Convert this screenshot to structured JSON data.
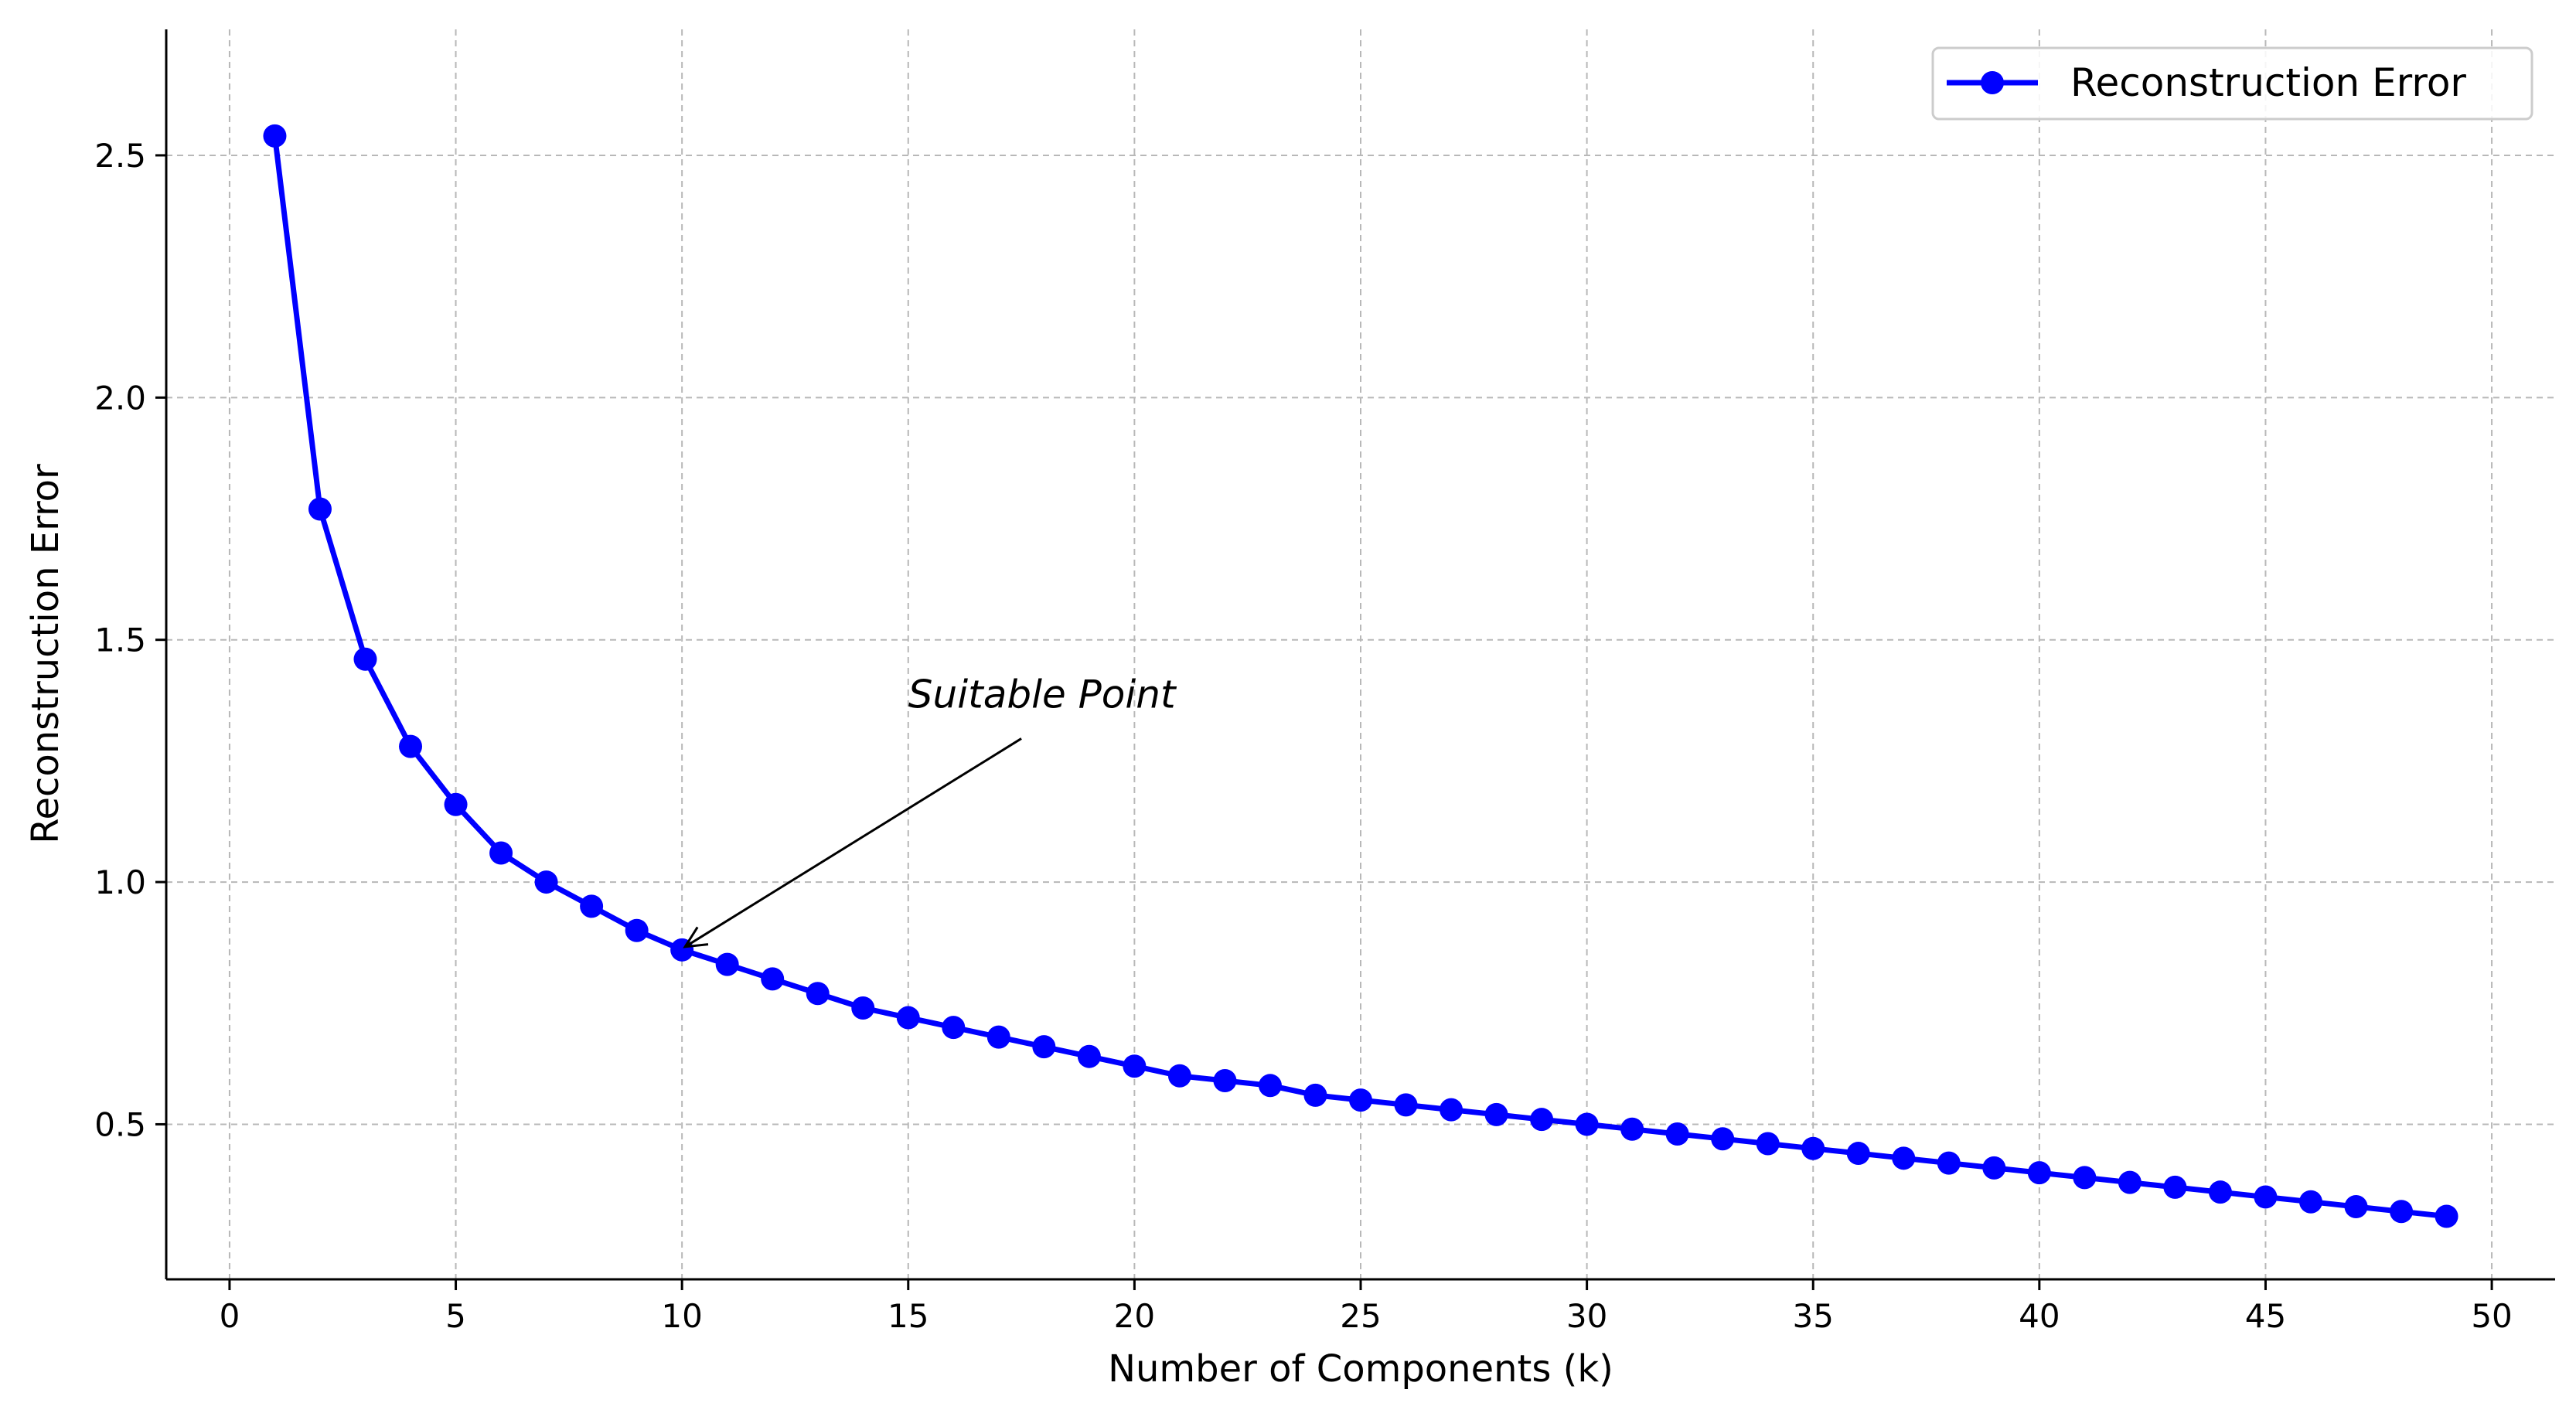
{
  "chart_data": {
    "type": "line",
    "title": "",
    "xlabel": "Number of Components (k)",
    "ylabel": "Reconstruction Error",
    "xlim": [
      -1.4,
      51.4
    ],
    "ylim": [
      0.18,
      2.76
    ],
    "xticks": [
      0,
      5,
      10,
      15,
      20,
      25,
      30,
      35,
      40,
      45,
      50
    ],
    "xtick_labels": [
      "0",
      "5",
      "10",
      "15",
      "20",
      "25",
      "30",
      "35",
      "40",
      "45",
      "50"
    ],
    "yticks": [
      0.5,
      1.0,
      1.5,
      2.0,
      2.5
    ],
    "ytick_labels": [
      "0.5",
      "1.0",
      "1.5",
      "2.0",
      "2.5"
    ],
    "grid": true,
    "legend_position": "top-right",
    "series": [
      {
        "name": "Reconstruction Error",
        "color": "#0000ff",
        "marker": "circle",
        "x": [
          1,
          2,
          3,
          4,
          5,
          6,
          7,
          8,
          9,
          10,
          11,
          12,
          13,
          14,
          15,
          16,
          17,
          18,
          19,
          20,
          21,
          22,
          23,
          24,
          25,
          26,
          27,
          28,
          29,
          30,
          31,
          32,
          33,
          34,
          35,
          36,
          37,
          38,
          39,
          40,
          41,
          42,
          43,
          44,
          45,
          46,
          47,
          48,
          49
        ],
        "values": [
          2.54,
          1.77,
          1.46,
          1.28,
          1.16,
          1.06,
          1.0,
          0.95,
          0.9,
          0.86,
          0.83,
          0.8,
          0.77,
          0.74,
          0.72,
          0.7,
          0.68,
          0.66,
          0.64,
          0.62,
          0.6,
          0.59,
          0.58,
          0.56,
          0.55,
          0.54,
          0.53,
          0.52,
          0.51,
          0.5,
          0.49,
          0.48,
          0.47,
          0.46,
          0.45,
          0.44,
          0.43,
          0.42,
          0.41,
          0.4,
          0.39,
          0.38,
          0.37,
          0.36,
          0.35,
          0.34,
          0.33,
          0.32,
          0.31
        ]
      }
    ],
    "annotations": [
      {
        "text": "Suitable Point",
        "point_x": 10,
        "point_y": 0.86,
        "text_x": 15,
        "text_y": 1.36
      }
    ]
  }
}
